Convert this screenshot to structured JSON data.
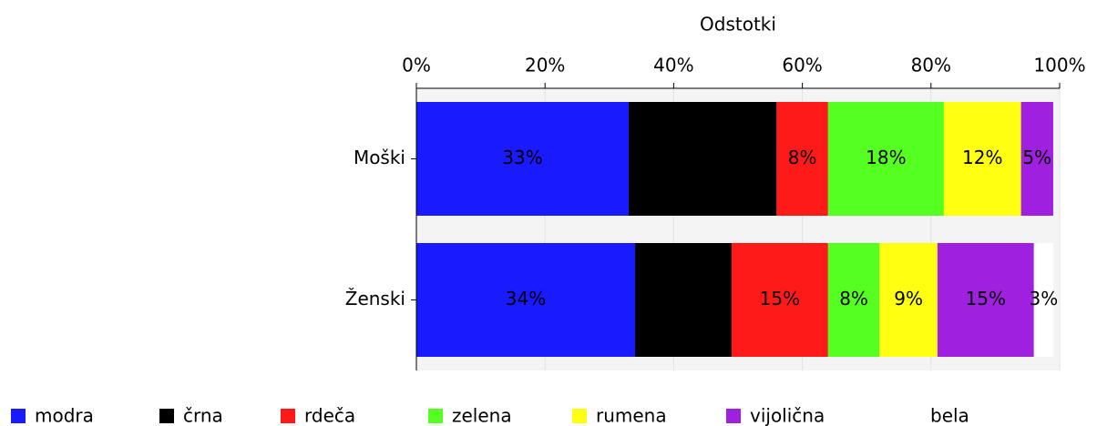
{
  "chart_data": {
    "type": "stacked-bar-horizontal",
    "title": "Odstotki",
    "categories": [
      "Moški",
      "Ženski"
    ],
    "series": [
      {
        "name": "modra",
        "color": "#1a1aff",
        "values": [
          33,
          34
        ],
        "value_labels": [
          "33%",
          "34%"
        ]
      },
      {
        "name": "črna",
        "color": "#000000",
        "values": [
          23,
          15
        ],
        "value_labels": [
          "23%",
          "15%"
        ]
      },
      {
        "name": "rdeča",
        "color": "#ff1a1a",
        "values": [
          8,
          15
        ],
        "value_labels": [
          "8%",
          "15%"
        ]
      },
      {
        "name": "zelena",
        "color": "#55ff22",
        "values": [
          18,
          8
        ],
        "value_labels": [
          "18%",
          "8%"
        ]
      },
      {
        "name": "rumena",
        "color": "#ffff11",
        "values": [
          12,
          9
        ],
        "value_labels": [
          "12%",
          "9%"
        ]
      },
      {
        "name": "vijolična",
        "color": "#a020e0",
        "values": [
          5,
          15
        ],
        "value_labels": [
          "5%",
          "15%"
        ]
      },
      {
        "name": "bela",
        "color": "#ffffff",
        "values": [
          0,
          3
        ],
        "value_labels": [
          null,
          "3%"
        ]
      }
    ],
    "xlim": [
      0,
      100
    ],
    "xticks": [
      {
        "value": 0,
        "label": "0%"
      },
      {
        "value": 20,
        "label": "20%"
      },
      {
        "value": 40,
        "label": "40%"
      },
      {
        "value": 60,
        "label": "60%"
      },
      {
        "value": 80,
        "label": "80%"
      },
      {
        "value": 100,
        "label": "100%"
      }
    ],
    "grid": true
  }
}
